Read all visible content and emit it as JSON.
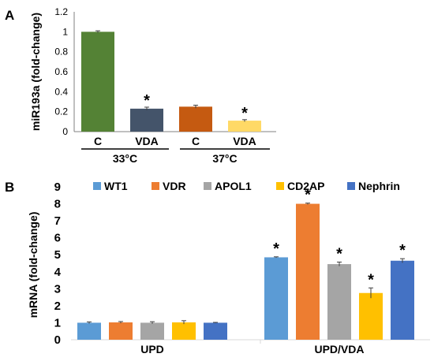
{
  "chart_data": [
    {
      "panel": "A",
      "type": "bar",
      "ylabel": "miR193a (fold-change)",
      "ylim": [
        0,
        1.2
      ],
      "yticks": [
        "0",
        "0.2",
        "0.4",
        "0.6",
        "0.8",
        "1",
        "1.2"
      ],
      "grid": false,
      "bars": [
        {
          "category": "C",
          "group": "33°C",
          "value": 1.0,
          "error": 0.01,
          "color": "#548235",
          "significant": false
        },
        {
          "category": "VDA",
          "group": "33°C",
          "value": 0.23,
          "error": 0.015,
          "color": "#44546A",
          "significant": true
        },
        {
          "category": "C",
          "group": "37°C",
          "value": 0.25,
          "error": 0.015,
          "color": "#C55A11",
          "significant": false
        },
        {
          "category": "VDA",
          "group": "37°C",
          "value": 0.11,
          "error": 0.01,
          "color": "#FFD966",
          "significant": true
        }
      ],
      "groups": [
        "33°C",
        "37°C"
      ],
      "significance_marker": "*"
    },
    {
      "panel": "B",
      "type": "bar",
      "ylabel": "mRNA (fold-change)",
      "ylim": [
        0,
        9
      ],
      "yticks": [
        "0",
        "1",
        "2",
        "3",
        "4",
        "5",
        "6",
        "7",
        "8",
        "9"
      ],
      "grid": false,
      "legend_position": "top",
      "categories": [
        "UPD",
        "UPD/VDA"
      ],
      "series": [
        {
          "name": "WT1",
          "color": "#5B9BD5",
          "values": [
            1.0,
            4.85
          ],
          "errors": [
            0.05,
            0.03
          ],
          "significant": [
            false,
            true
          ]
        },
        {
          "name": "VDR",
          "color": "#ED7D31",
          "values": [
            1.02,
            8.0
          ],
          "errors": [
            0.05,
            0.04
          ],
          "significant": [
            false,
            true
          ]
        },
        {
          "name": "APOL1",
          "color": "#A5A5A5",
          "values": [
            1.0,
            4.45
          ],
          "errors": [
            0.06,
            0.12
          ],
          "significant": [
            false,
            true
          ]
        },
        {
          "name": "CD2AP",
          "color": "#FFC000",
          "values": [
            1.02,
            2.75
          ],
          "errors": [
            0.1,
            0.3
          ],
          "significant": [
            false,
            true
          ]
        },
        {
          "name": "Nephrin",
          "color": "#4472C4",
          "values": [
            1.0,
            4.65
          ],
          "errors": [
            0.02,
            0.12
          ],
          "significant": [
            false,
            true
          ]
        }
      ],
      "significance_marker": "*"
    }
  ]
}
